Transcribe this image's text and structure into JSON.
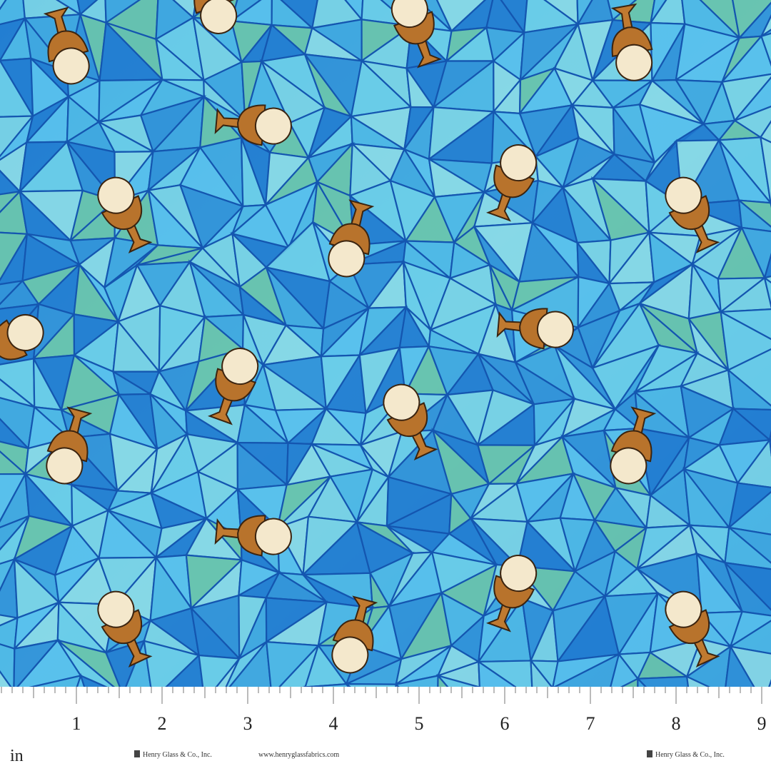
{
  "ruler": {
    "numbers": [
      1,
      2,
      3,
      4,
      5,
      6,
      7,
      8,
      9
    ],
    "unit": "in"
  },
  "selvage": {
    "brand_left": "Henry Glass & Co., Inc.",
    "website": "www.henryglassfabrics.com",
    "brand_right": "Henry Glass & Co., Inc."
  }
}
